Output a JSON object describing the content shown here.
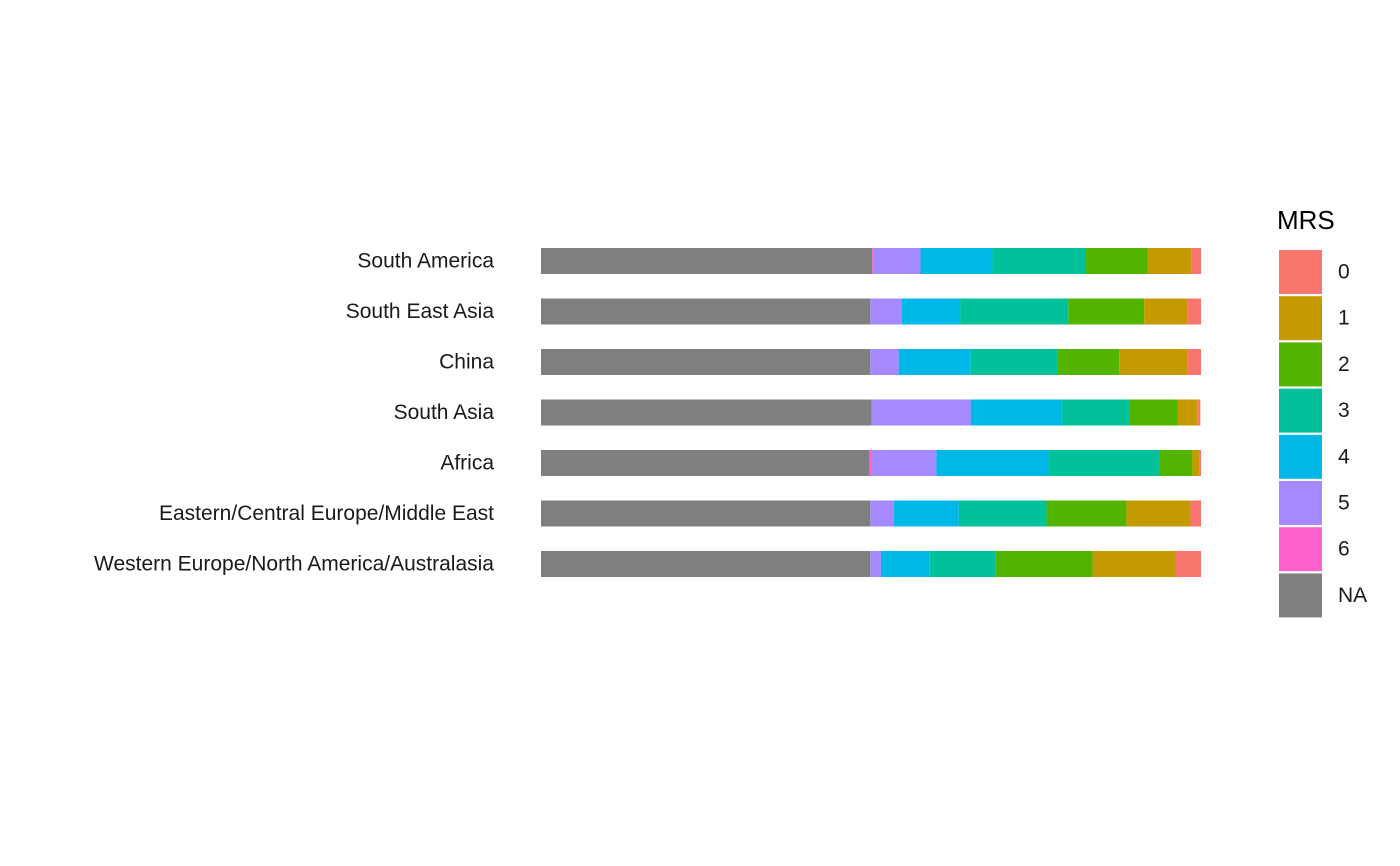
{
  "chart_data": {
    "type": "bar",
    "orientation": "horizontal",
    "stacked": true,
    "normalized": true,
    "title": "",
    "xlabel": "",
    "ylabel": "",
    "xlim": [
      0,
      1
    ],
    "grid": false,
    "categories": [
      "South America",
      "South East Asia",
      "China",
      "South Asia",
      "Africa",
      "Eastern/Central Europe/Middle East",
      "Western Europe/North America/Australasia"
    ],
    "series": [
      {
        "name": "NA",
        "color": "#7F7F7F",
        "values": [
          0.502,
          0.499,
          0.499,
          0.501,
          0.498,
          0.499,
          0.499
        ]
      },
      {
        "name": "6",
        "color": "#FF61CC",
        "values": [
          0.002,
          0.0,
          0.0,
          0.0,
          0.002,
          0.0,
          0.0
        ]
      },
      {
        "name": "5",
        "color": "#A58AFF",
        "values": [
          0.071,
          0.048,
          0.043,
          0.15,
          0.099,
          0.036,
          0.016
        ]
      },
      {
        "name": "4",
        "color": "#00B8E7",
        "values": [
          0.109,
          0.088,
          0.109,
          0.138,
          0.17,
          0.098,
          0.074
        ]
      },
      {
        "name": "3",
        "color": "#00C19A",
        "values": [
          0.141,
          0.164,
          0.131,
          0.102,
          0.168,
          0.133,
          0.1
        ]
      },
      {
        "name": "2",
        "color": "#53B400",
        "values": [
          0.094,
          0.115,
          0.094,
          0.074,
          0.05,
          0.121,
          0.147
        ]
      },
      {
        "name": "1",
        "color": "#C49A00",
        "values": [
          0.066,
          0.065,
          0.104,
          0.03,
          0.011,
          0.097,
          0.126
        ]
      },
      {
        "name": "0",
        "color": "#F8766D",
        "values": [
          0.015,
          0.021,
          0.02,
          0.004,
          0.002,
          0.016,
          0.038
        ]
      }
    ],
    "legend": {
      "title": "MRS",
      "position": "right",
      "entries": [
        {
          "label": "0",
          "color": "#F8766D"
        },
        {
          "label": "1",
          "color": "#C49A00"
        },
        {
          "label": "2",
          "color": "#53B400"
        },
        {
          "label": "3",
          "color": "#00C19A"
        },
        {
          "label": "4",
          "color": "#00B8E7"
        },
        {
          "label": "5",
          "color": "#A58AFF"
        },
        {
          "label": "6",
          "color": "#FF61CC"
        },
        {
          "label": "NA",
          "color": "#7F7F7F"
        }
      ]
    }
  }
}
